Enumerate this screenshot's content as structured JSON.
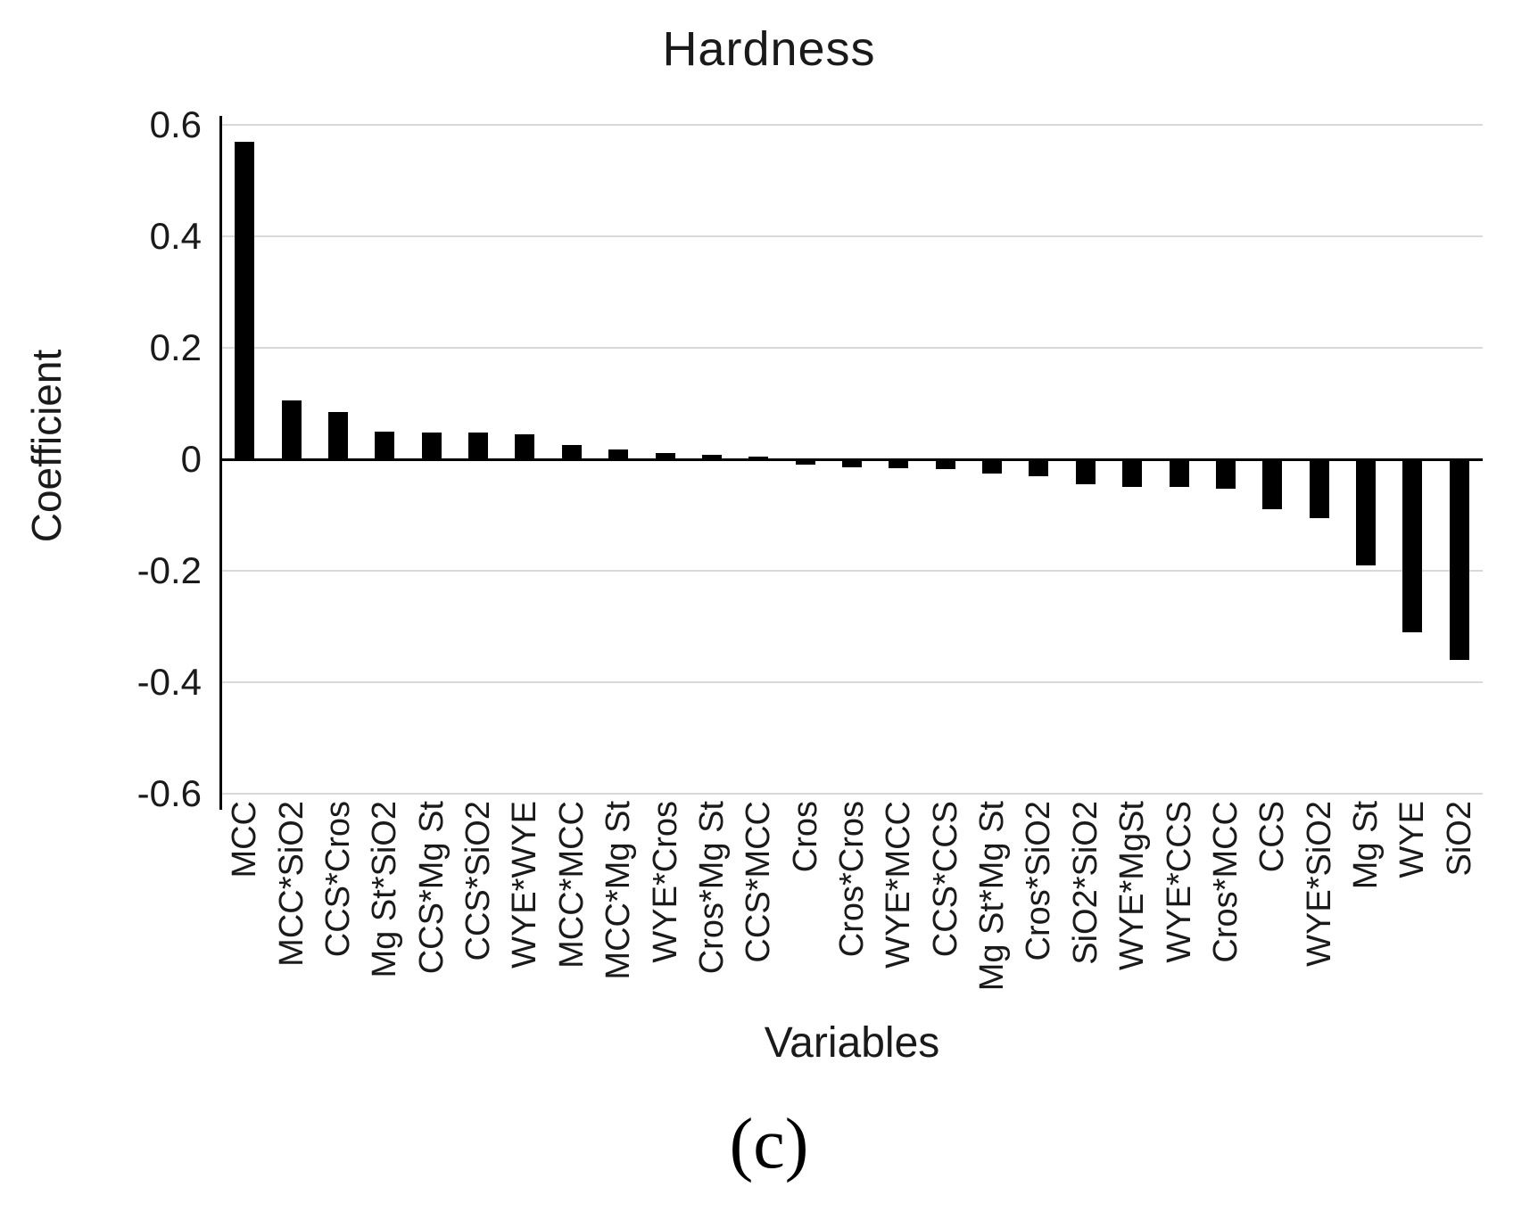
{
  "chart_data": {
    "type": "bar",
    "title": "Hardness",
    "xlabel": "Variables",
    "ylabel": "Coefficient",
    "caption": "(c)",
    "categories": [
      "MCC",
      "MCC*SiO2",
      "CCS*Cros",
      "Mg St*SiO2",
      "CCS*Mg St",
      "CCS*SiO2",
      "WYE*WYE",
      "MCC*MCC",
      "MCC*Mg St",
      "WYE*Cros",
      "Cros*Mg St",
      "CCS*MCC",
      "Cros",
      "Cros*Cros",
      "WYE*MCC",
      "CCS*CCS",
      "Mg St*Mg St",
      "Cros*SiO2",
      "SiO2*SiO2",
      "WYE*MgSt",
      "WYE*CCS",
      "Cros*MCC",
      "CCS",
      "WYE*SiO2",
      "Mg St",
      "WYE",
      "SiO2"
    ],
    "values": [
      0.57,
      0.105,
      0.085,
      0.05,
      0.048,
      0.048,
      0.045,
      0.025,
      0.018,
      0.012,
      0.008,
      0.005,
      -0.01,
      -0.015,
      -0.016,
      -0.018,
      -0.025,
      -0.03,
      -0.045,
      -0.05,
      -0.05,
      -0.052,
      -0.09,
      -0.105,
      -0.19,
      -0.31,
      -0.36
    ],
    "ylim": [
      -0.6,
      0.6
    ],
    "ytick_interval": 0.2,
    "ytick_labels": [
      "0.6",
      "0.4",
      "0.2",
      "0",
      "-0.2",
      "-0.4",
      "-0.6"
    ],
    "grid": "horizontal",
    "legend": "none",
    "bar_color": "#000000",
    "gridline_color": "#d9d9d9",
    "axis_color": "#000000"
  }
}
